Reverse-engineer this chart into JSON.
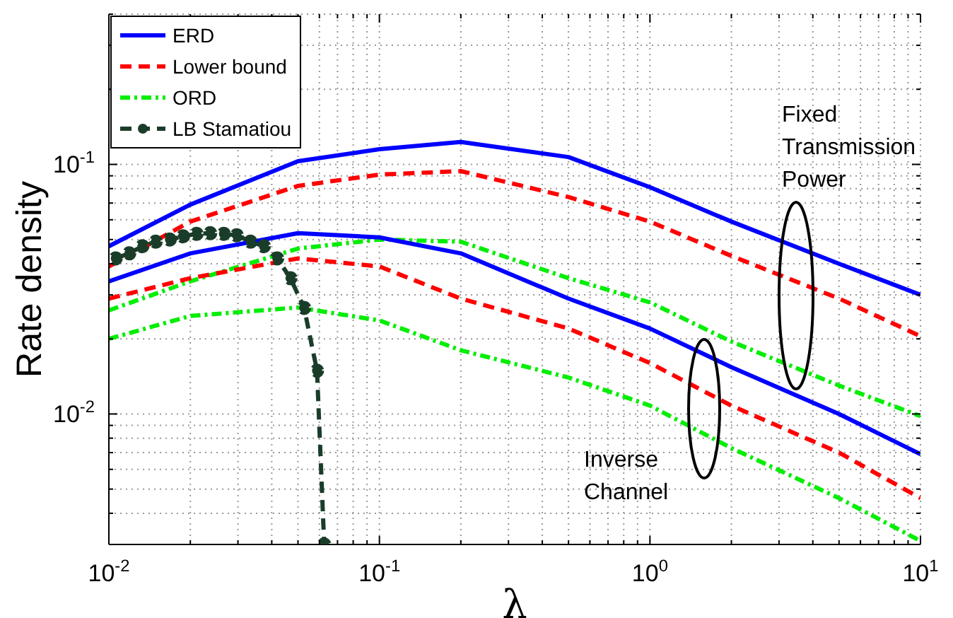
{
  "chart_data": {
    "type": "line",
    "xlabel": "λ",
    "ylabel": "Rate density",
    "log": "xy",
    "grid": true,
    "legend": "top left",
    "xlim": [
      0.01,
      10
    ],
    "ylim": [
      0.003,
      0.4
    ],
    "xticks": [
      {
        "value": 0.01,
        "label": "10$^{-2}$"
      },
      {
        "value": 0.02,
        "label": null
      },
      {
        "value": 0.03,
        "label": null
      },
      {
        "value": 0.04,
        "label": null
      },
      {
        "value": 0.05,
        "label": null
      },
      {
        "value": 0.06,
        "label": null
      },
      {
        "value": 0.07,
        "label": null
      },
      {
        "value": 0.08,
        "label": null
      },
      {
        "value": 0.09,
        "label": null
      },
      {
        "value": 0.1,
        "label": "10$^{-1}$"
      },
      {
        "value": 0.2,
        "label": null
      },
      {
        "value": 0.3,
        "label": null
      },
      {
        "value": 0.4,
        "label": null
      },
      {
        "value": 0.5,
        "label": null
      },
      {
        "value": 0.6,
        "label": null
      },
      {
        "value": 0.7,
        "label": null
      },
      {
        "value": 0.8,
        "label": null
      },
      {
        "value": 0.9,
        "label": null
      },
      {
        "value": 1,
        "label": "10$^{0}$"
      },
      {
        "value": 2,
        "label": null
      },
      {
        "value": 3,
        "label": null
      },
      {
        "value": 4,
        "label": null
      },
      {
        "value": 5,
        "label": null
      },
      {
        "value": 6,
        "label": null
      },
      {
        "value": 7,
        "label": null
      },
      {
        "value": 8,
        "label": null
      },
      {
        "value": 9,
        "label": null
      },
      {
        "value": 10,
        "label": "10$^{1}$"
      }
    ],
    "yticks": [
      {
        "value": 0.003,
        "label": null
      },
      {
        "value": 0.004,
        "label": null
      },
      {
        "value": 0.005,
        "label": null
      },
      {
        "value": 0.006,
        "label": null
      },
      {
        "value": 0.007,
        "label": null
      },
      {
        "value": 0.008,
        "label": null
      },
      {
        "value": 0.009,
        "label": null
      },
      {
        "value": 0.01,
        "label": "10$^{-2}$"
      },
      {
        "value": 0.02,
        "label": null
      },
      {
        "value": 0.03,
        "label": null
      },
      {
        "value": 0.04,
        "label": null
      },
      {
        "value": 0.05,
        "label": null
      },
      {
        "value": 0.06,
        "label": null
      },
      {
        "value": 0.07,
        "label": null
      },
      {
        "value": 0.08,
        "label": null
      },
      {
        "value": 0.09,
        "label": null
      },
      {
        "value": 0.1,
        "label": "10$^{-1}$"
      },
      {
        "value": 0.2,
        "label": null
      },
      {
        "value": 0.3,
        "label": null
      },
      {
        "value": 0.4,
        "label": null
      }
    ],
    "x": [
      0.01,
      0.02,
      0.05,
      0.1,
      0.2,
      0.5,
      1,
      2,
      5,
      10
    ],
    "series": [
      {
        "name": "ERD",
        "color": "#0000ff",
        "line_style": "solid",
        "marker": "none",
        "values": [
          0.047,
          0.069,
          0.103,
          0.115,
          0.123,
          0.107,
          0.081,
          0.059,
          0.04,
          0.03
        ]
      },
      {
        "name": "Lower bound",
        "color": "#ff0000",
        "line_style": "dashed",
        "marker": "none",
        "values": [
          0.039,
          0.059,
          0.082,
          0.091,
          0.094,
          0.074,
          0.059,
          0.043,
          0.029,
          0.0205
        ]
      },
      {
        "name": "ORD",
        "color": "#00ee00",
        "line_style": "dotted",
        "marker": "none",
        "values": [
          0.026,
          0.034,
          0.046,
          0.05,
          0.049,
          0.035,
          0.028,
          0.0195,
          0.013,
          0.0098
        ]
      },
      {
        "name": "LB Stamatiou",
        "color": "#1a3d2a",
        "line_style": "dashed",
        "marker": "circle",
        "x": [
          0.0106,
          0.0119,
          0.0133,
          0.0149,
          0.0168,
          0.0188,
          0.0211,
          0.0237,
          0.0266,
          0.0297,
          0.0334,
          0.0374,
          0.0419,
          0.0469,
          0.0527,
          0.0588,
          0.0625
        ],
        "values": [
          0.042,
          0.044,
          0.047,
          0.049,
          0.05,
          0.0515,
          0.0527,
          0.053,
          0.0527,
          0.052,
          0.049,
          0.047,
          0.042,
          0.035,
          0.0266,
          0.0149,
          0.003
        ]
      },
      {
        "color": "#0000ff",
        "line_style": "solid",
        "marker": "none",
        "values": [
          0.034,
          0.044,
          0.053,
          0.051,
          0.044,
          0.029,
          0.022,
          0.0154,
          0.01,
          0.0069
        ]
      },
      {
        "color": "#ff0000",
        "line_style": "dashed",
        "marker": "none",
        "values": [
          0.029,
          0.035,
          0.042,
          0.039,
          0.029,
          0.022,
          0.016,
          0.0108,
          0.007,
          0.0046
        ]
      },
      {
        "color": "#00ee00",
        "line_style": "dotted",
        "marker": "none",
        "values": [
          0.02,
          0.0247,
          0.0267,
          0.0237,
          0.018,
          0.014,
          0.0108,
          0.0073,
          0.0046,
          0.0031
        ]
      }
    ],
    "annotations": [
      "Fixed Transmission Power",
      "Inverse Channel"
    ]
  }
}
